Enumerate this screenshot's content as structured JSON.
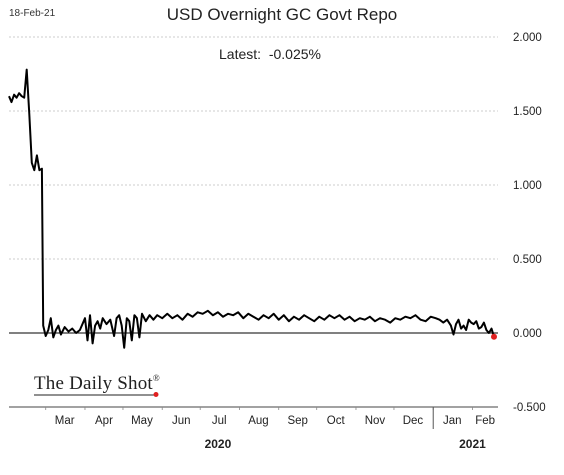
{
  "header": {
    "date_stamp": "18-Feb-21",
    "title": "USD Overnight GC Govt Repo",
    "latest_label": "Latest:",
    "latest_value": "-0.025%"
  },
  "watermark": {
    "text": "The Daily Shot",
    "mark": "®"
  },
  "colors": {
    "line": "#000000",
    "latest_point": "#e02020",
    "grid": "#bdbdbd",
    "zero_line": "#000000",
    "text": "#222222"
  },
  "chart_data": {
    "type": "line",
    "title": "USD Overnight GC Govt Repo",
    "xlabel": "",
    "ylabel": "",
    "ylim": [
      -0.5,
      2.0
    ],
    "y_ticks": [
      -0.5,
      0.0,
      0.5,
      1.0,
      1.5,
      2.0
    ],
    "y_tick_labels": [
      "-0.500",
      "0.000",
      "0.500",
      "1.000",
      "1.500",
      "2.000"
    ],
    "y_axis_side": "right",
    "grid": "horizontal dashed",
    "x_range": [
      "2020-02-01",
      "2021-02-18"
    ],
    "x_tick_labels": [
      {
        "date": "2020-03-01",
        "label": "Mar"
      },
      {
        "date": "2020-04-01",
        "label": "Apr"
      },
      {
        "date": "2020-05-01",
        "label": "May"
      },
      {
        "date": "2020-06-01",
        "label": "Jun"
      },
      {
        "date": "2020-07-01",
        "label": "Jul"
      },
      {
        "date": "2020-08-01",
        "label": "Aug"
      },
      {
        "date": "2020-09-01",
        "label": "Sep"
      },
      {
        "date": "2020-10-01",
        "label": "Oct"
      },
      {
        "date": "2020-11-01",
        "label": "Nov"
      },
      {
        "date": "2020-12-01",
        "label": "Dec"
      },
      {
        "date": "2021-01-01",
        "label": "Jan"
      },
      {
        "date": "2021-02-01",
        "label": "Feb"
      }
    ],
    "year_labels": [
      {
        "date": "2020-07-15",
        "label": "2020"
      },
      {
        "date": "2021-02-01",
        "label": "2021"
      }
    ],
    "year_divider": "2021-01-01",
    "series": [
      {
        "points": [
          [
            "2020-02-01",
            1.6
          ],
          [
            "2020-02-03",
            1.56
          ],
          [
            "2020-02-05",
            1.61
          ],
          [
            "2020-02-07",
            1.59
          ],
          [
            "2020-02-09",
            1.62
          ],
          [
            "2020-02-11",
            1.6
          ],
          [
            "2020-02-13",
            1.59
          ],
          [
            "2020-02-15",
            1.78
          ],
          [
            "2020-02-17",
            1.48
          ],
          [
            "2020-02-19",
            1.15
          ],
          [
            "2020-02-21",
            1.1
          ],
          [
            "2020-02-23",
            1.2
          ],
          [
            "2020-02-25",
            1.1
          ],
          [
            "2020-02-27",
            1.11
          ],
          [
            "2020-02-28",
            0.05
          ],
          [
            "2020-03-01",
            -0.02
          ],
          [
            "2020-03-03",
            0.02
          ],
          [
            "2020-03-05",
            0.1
          ],
          [
            "2020-03-07",
            -0.03
          ],
          [
            "2020-03-09",
            0.02
          ],
          [
            "2020-03-11",
            0.05
          ],
          [
            "2020-03-13",
            -0.01
          ],
          [
            "2020-03-16",
            0.04
          ],
          [
            "2020-03-19",
            0.01
          ],
          [
            "2020-03-22",
            0.03
          ],
          [
            "2020-03-25",
            0.0
          ],
          [
            "2020-03-28",
            0.02
          ],
          [
            "2020-04-01",
            0.1
          ],
          [
            "2020-04-03",
            -0.05
          ],
          [
            "2020-04-05",
            0.12
          ],
          [
            "2020-04-07",
            -0.07
          ],
          [
            "2020-04-09",
            0.05
          ],
          [
            "2020-04-11",
            0.08
          ],
          [
            "2020-04-13",
            0.03
          ],
          [
            "2020-04-15",
            0.1
          ],
          [
            "2020-04-18",
            0.06
          ],
          [
            "2020-04-21",
            0.09
          ],
          [
            "2020-04-24",
            -0.02
          ],
          [
            "2020-04-26",
            0.1
          ],
          [
            "2020-04-28",
            0.12
          ],
          [
            "2020-04-30",
            0.05
          ],
          [
            "2020-05-02",
            -0.1
          ],
          [
            "2020-05-04",
            0.1
          ],
          [
            "2020-05-06",
            0.08
          ],
          [
            "2020-05-08",
            -0.05
          ],
          [
            "2020-05-10",
            0.12
          ],
          [
            "2020-05-12",
            0.1
          ],
          [
            "2020-05-14",
            -0.03
          ],
          [
            "2020-05-16",
            0.13
          ],
          [
            "2020-05-19",
            0.08
          ],
          [
            "2020-05-22",
            0.12
          ],
          [
            "2020-05-25",
            0.09
          ],
          [
            "2020-05-28",
            0.12
          ],
          [
            "2020-06-01",
            0.1
          ],
          [
            "2020-06-05",
            0.13
          ],
          [
            "2020-06-09",
            0.1
          ],
          [
            "2020-06-13",
            0.12
          ],
          [
            "2020-06-17",
            0.09
          ],
          [
            "2020-06-21",
            0.13
          ],
          [
            "2020-06-25",
            0.11
          ],
          [
            "2020-06-29",
            0.14
          ],
          [
            "2020-07-03",
            0.13
          ],
          [
            "2020-07-07",
            0.15
          ],
          [
            "2020-07-11",
            0.12
          ],
          [
            "2020-07-15",
            0.14
          ],
          [
            "2020-07-19",
            0.11
          ],
          [
            "2020-07-23",
            0.13
          ],
          [
            "2020-07-27",
            0.12
          ],
          [
            "2020-07-31",
            0.14
          ],
          [
            "2020-08-04",
            0.1
          ],
          [
            "2020-08-08",
            0.13
          ],
          [
            "2020-08-12",
            0.11
          ],
          [
            "2020-08-16",
            0.09
          ],
          [
            "2020-08-20",
            0.12
          ],
          [
            "2020-08-24",
            0.1
          ],
          [
            "2020-08-28",
            0.13
          ],
          [
            "2020-09-01",
            0.09
          ],
          [
            "2020-09-05",
            0.12
          ],
          [
            "2020-09-09",
            0.08
          ],
          [
            "2020-09-13",
            0.11
          ],
          [
            "2020-09-17",
            0.09
          ],
          [
            "2020-09-21",
            0.12
          ],
          [
            "2020-09-25",
            0.1
          ],
          [
            "2020-09-29",
            0.08
          ],
          [
            "2020-10-03",
            0.11
          ],
          [
            "2020-10-07",
            0.09
          ],
          [
            "2020-10-11",
            0.12
          ],
          [
            "2020-10-15",
            0.1
          ],
          [
            "2020-10-19",
            0.12
          ],
          [
            "2020-10-23",
            0.09
          ],
          [
            "2020-10-27",
            0.11
          ],
          [
            "2020-10-31",
            0.08
          ],
          [
            "2020-11-04",
            0.1
          ],
          [
            "2020-11-08",
            0.09
          ],
          [
            "2020-11-12",
            0.11
          ],
          [
            "2020-11-16",
            0.08
          ],
          [
            "2020-11-20",
            0.1
          ],
          [
            "2020-11-24",
            0.09
          ],
          [
            "2020-11-28",
            0.07
          ],
          [
            "2020-12-02",
            0.1
          ],
          [
            "2020-12-06",
            0.09
          ],
          [
            "2020-12-10",
            0.11
          ],
          [
            "2020-12-14",
            0.1
          ],
          [
            "2020-12-18",
            0.12
          ],
          [
            "2020-12-22",
            0.09
          ],
          [
            "2020-12-26",
            0.08
          ],
          [
            "2020-12-30",
            0.11
          ],
          [
            "2021-01-03",
            0.1
          ],
          [
            "2021-01-06",
            0.09
          ],
          [
            "2021-01-09",
            0.07
          ],
          [
            "2021-01-12",
            0.09
          ],
          [
            "2021-01-15",
            0.05
          ],
          [
            "2021-01-17",
            -0.01
          ],
          [
            "2021-01-19",
            0.06
          ],
          [
            "2021-01-21",
            0.09
          ],
          [
            "2021-01-23",
            0.03
          ],
          [
            "2021-01-25",
            0.05
          ],
          [
            "2021-01-27",
            0.02
          ],
          [
            "2021-01-29",
            0.09
          ],
          [
            "2021-01-31",
            0.07
          ],
          [
            "2021-02-02",
            0.06
          ],
          [
            "2021-02-04",
            0.08
          ],
          [
            "2021-02-06",
            0.03
          ],
          [
            "2021-02-08",
            0.04
          ],
          [
            "2021-02-10",
            0.07
          ],
          [
            "2021-02-12",
            0.02
          ],
          [
            "2021-02-14",
            0.0
          ],
          [
            "2021-02-16",
            0.03
          ],
          [
            "2021-02-18",
            -0.025
          ]
        ]
      }
    ],
    "latest_point": [
      "2021-02-18",
      -0.025
    ]
  }
}
